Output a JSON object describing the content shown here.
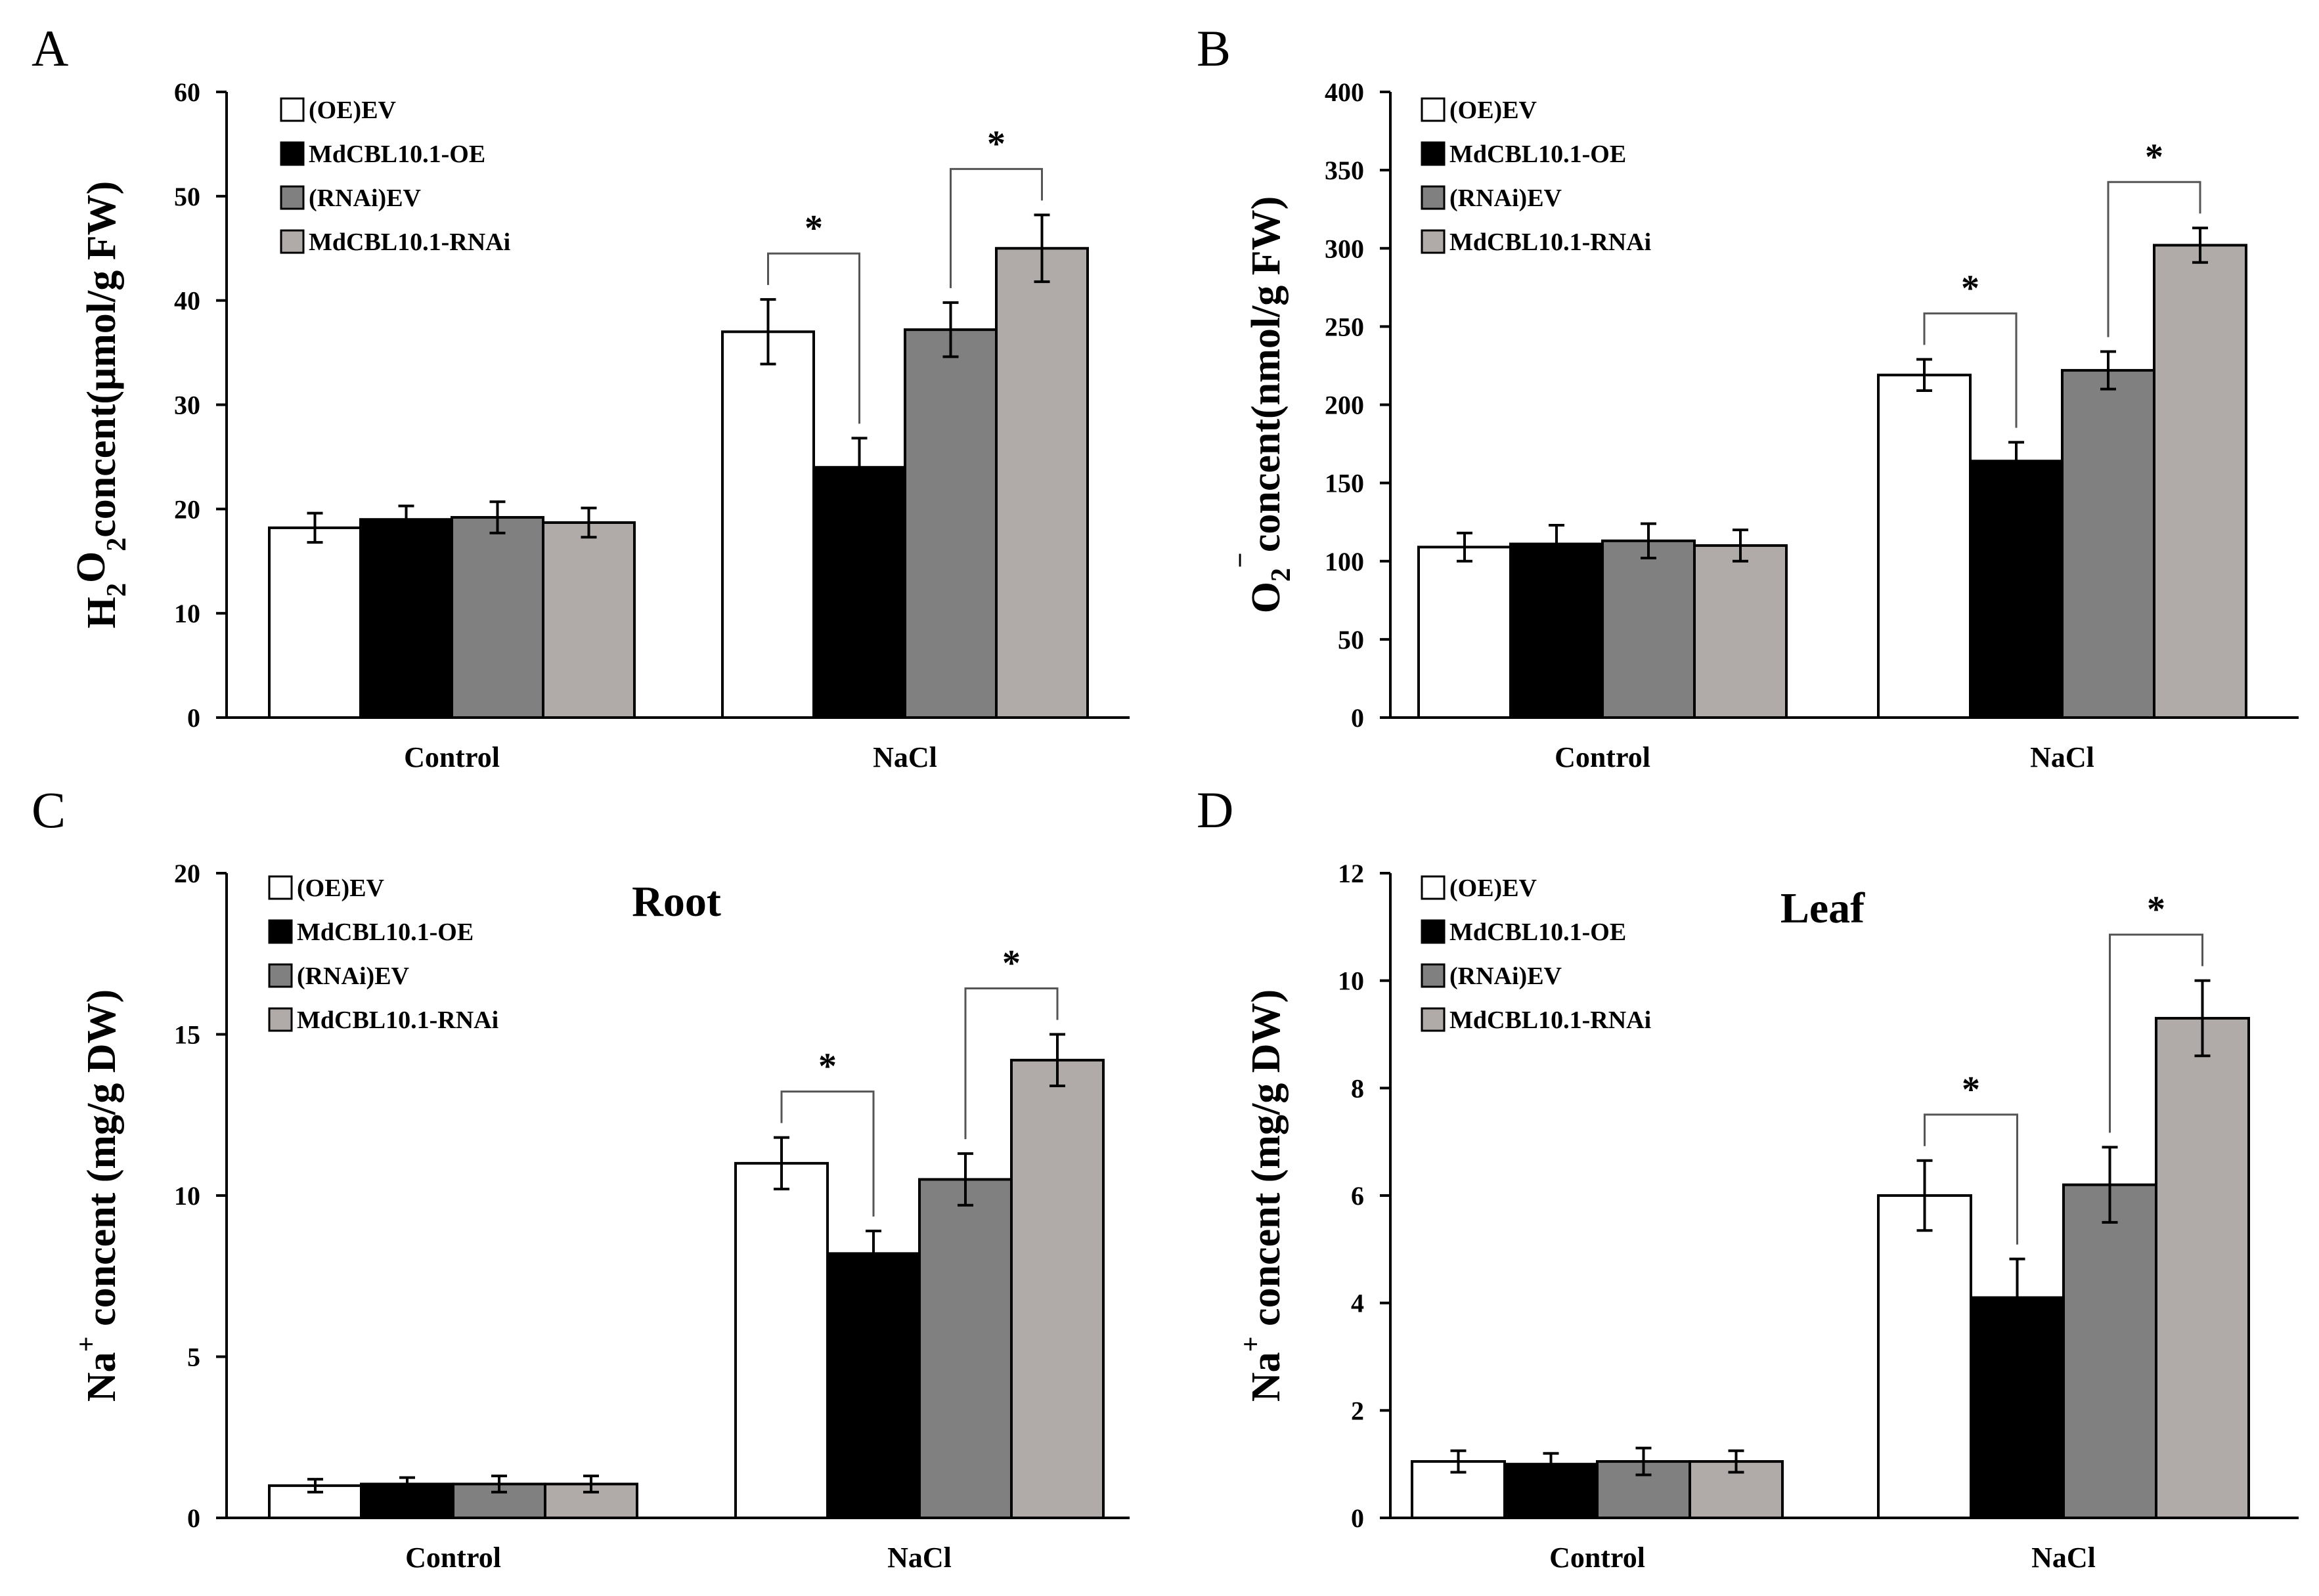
{
  "series_colors": [
    "#ffffff",
    "#000000",
    "#808080",
    "#b0aaa8"
  ],
  "chart_data": [
    {
      "panel": "A",
      "type": "bar",
      "title": "",
      "ylabel_main": "H",
      "ylabel_sub1": "2",
      "ylabel_mid": "O",
      "ylabel_sub2": "2",
      "ylabel_tail": "concent(μmol/g FW)",
      "xlabel": "",
      "ylim": [
        0,
        60
      ],
      "yticks": [
        "0",
        "10",
        "20",
        "30",
        "40",
        "50",
        "60"
      ],
      "categories": [
        "Control",
        "NaCl"
      ],
      "series": [
        {
          "name": "(OE)EV",
          "values": [
            18.2,
            37.0
          ],
          "errors": [
            1.4,
            3.1
          ]
        },
        {
          "name": "MdCBL10.1-OE",
          "values": [
            19.0,
            24.0
          ],
          "errors": [
            1.3,
            2.8
          ]
        },
        {
          "name": "(RNAi)EV",
          "values": [
            19.2,
            37.2
          ],
          "errors": [
            1.5,
            2.6
          ]
        },
        {
          "name": "MdCBL10.1-RNAi",
          "values": [
            18.7,
            45.0
          ],
          "errors": [
            1.4,
            3.2
          ]
        }
      ],
      "annotations": [
        {
          "text": "*",
          "category": 1,
          "from_series": 0,
          "to_series": 1
        },
        {
          "text": "*",
          "category": 1,
          "from_series": 2,
          "to_series": 3
        }
      ]
    },
    {
      "panel": "B",
      "type": "bar",
      "title": "",
      "ylabel_main": "O",
      "ylabel_sub1": "2",
      "ylabel_sup": "−",
      "ylabel_tail": "concent(nmol/g FW)",
      "xlabel": "",
      "ylim": [
        0,
        400
      ],
      "yticks": [
        "0",
        "50",
        "100",
        "150",
        "200",
        "250",
        "300",
        "350",
        "400"
      ],
      "categories": [
        "Control",
        "NaCl"
      ],
      "series": [
        {
          "name": "(OE)EV",
          "values": [
            109,
            219
          ],
          "errors": [
            9,
            10
          ]
        },
        {
          "name": "MdCBL10.1-OE",
          "values": [
            111,
            164
          ],
          "errors": [
            12,
            12
          ]
        },
        {
          "name": "(RNAi)EV",
          "values": [
            113,
            222
          ],
          "errors": [
            11,
            12
          ]
        },
        {
          "name": "MdCBL10.1-RNAi",
          "values": [
            110,
            302
          ],
          "errors": [
            10,
            11
          ]
        }
      ],
      "annotations": [
        {
          "text": "*",
          "category": 1,
          "from_series": 0,
          "to_series": 1
        },
        {
          "text": "*",
          "category": 1,
          "from_series": 2,
          "to_series": 3
        }
      ]
    },
    {
      "panel": "C",
      "type": "bar",
      "title": "Root",
      "ylabel_main": "Na",
      "ylabel_sup": "+",
      "ylabel_tail": " concent (mg/g DW)",
      "xlabel": "",
      "ylim": [
        0,
        20
      ],
      "yticks": [
        "0",
        "5",
        "10",
        "15",
        "20"
      ],
      "categories": [
        "Control",
        "NaCl"
      ],
      "series": [
        {
          "name": "(OE)EV",
          "values": [
            1.0,
            11.0
          ],
          "errors": [
            0.2,
            0.8
          ]
        },
        {
          "name": "MdCBL10.1-OE",
          "values": [
            1.05,
            8.2
          ],
          "errors": [
            0.2,
            0.7
          ]
        },
        {
          "name": "(RNAi)EV",
          "values": [
            1.05,
            10.5
          ],
          "errors": [
            0.25,
            0.8
          ]
        },
        {
          "name": "MdCBL10.1-RNAi",
          "values": [
            1.05,
            14.2
          ],
          "errors": [
            0.25,
            0.8
          ]
        }
      ],
      "annotations": [
        {
          "text": "*",
          "category": 1,
          "from_series": 0,
          "to_series": 1
        },
        {
          "text": "*",
          "category": 1,
          "from_series": 2,
          "to_series": 3
        }
      ]
    },
    {
      "panel": "D",
      "type": "bar",
      "title": "Leaf",
      "ylabel_main": "Na",
      "ylabel_sup": "+",
      "ylabel_tail": " concent (mg/g DW)",
      "xlabel": "",
      "ylim": [
        0,
        12
      ],
      "yticks": [
        "0",
        "2",
        "4",
        "6",
        "8",
        "10",
        "12"
      ],
      "categories": [
        "Control",
        "NaCl"
      ],
      "series": [
        {
          "name": "(OE)EV",
          "values": [
            1.05,
            6.0
          ],
          "errors": [
            0.2,
            0.65
          ]
        },
        {
          "name": "MdCBL10.1-OE",
          "values": [
            1.0,
            4.1
          ],
          "errors": [
            0.2,
            0.72
          ]
        },
        {
          "name": "(RNAi)EV",
          "values": [
            1.05,
            6.2
          ],
          "errors": [
            0.25,
            0.7
          ]
        },
        {
          "name": "MdCBL10.1-RNAi",
          "values": [
            1.05,
            9.3
          ],
          "errors": [
            0.2,
            0.7
          ]
        }
      ],
      "annotations": [
        {
          "text": "*",
          "category": 1,
          "from_series": 0,
          "to_series": 1
        },
        {
          "text": "*",
          "category": 1,
          "from_series": 2,
          "to_series": 3
        }
      ]
    }
  ]
}
